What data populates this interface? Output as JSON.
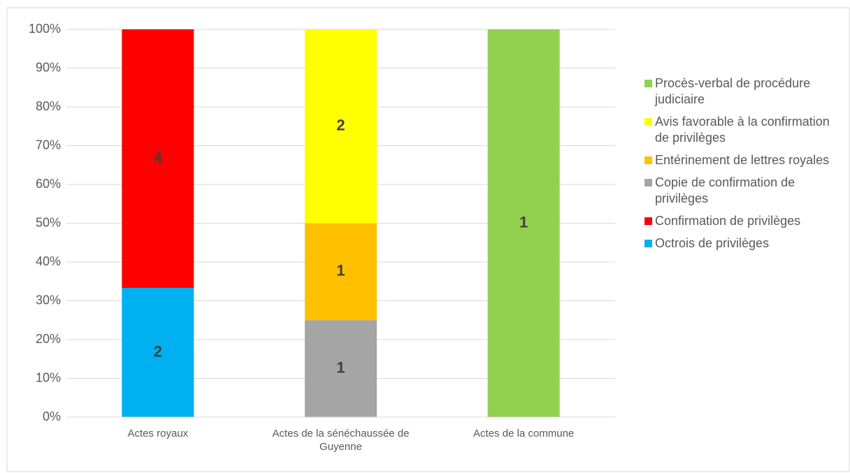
{
  "chart_data": {
    "type": "bar",
    "stacking": "percent",
    "categories": [
      "Actes royaux",
      "Actes de la sénéchaussée de Guyenne",
      "Actes de la commune"
    ],
    "series": [
      {
        "name": "Octrois de privilèges",
        "color": "#00b0f0",
        "values": [
          2,
          null,
          null
        ]
      },
      {
        "name": "Confirmation de privilèges",
        "color": "#ff0000",
        "values": [
          4,
          null,
          null
        ]
      },
      {
        "name": "Copie de confirmation de privilèges",
        "color": "#a5a5a5",
        "values": [
          null,
          1,
          null
        ]
      },
      {
        "name": "Entérinement de lettres royales",
        "color": "#ffc000",
        "values": [
          null,
          1,
          null
        ]
      },
      {
        "name": "Avis favorable à la confirmation de privilèges",
        "color": "#ffff00",
        "values": [
          null,
          2,
          null
        ]
      },
      {
        "name": "Procès-verbal de procédure judiciaire",
        "color": "#92d050",
        "values": [
          null,
          null,
          1
        ]
      }
    ],
    "ylim": [
      0,
      100
    ],
    "yticks": [
      {
        "value": 0,
        "label": "0%"
      },
      {
        "value": 10,
        "label": "10%"
      },
      {
        "value": 20,
        "label": "20%"
      },
      {
        "value": 30,
        "label": "30%"
      },
      {
        "value": 40,
        "label": "40%"
      },
      {
        "value": 50,
        "label": "50%"
      },
      {
        "value": 60,
        "label": "60%"
      },
      {
        "value": 70,
        "label": "70%"
      },
      {
        "value": 80,
        "label": "80%"
      },
      {
        "value": 90,
        "label": "90%"
      },
      {
        "value": 100,
        "label": "100%"
      }
    ],
    "grid": true,
    "legend": "right"
  }
}
